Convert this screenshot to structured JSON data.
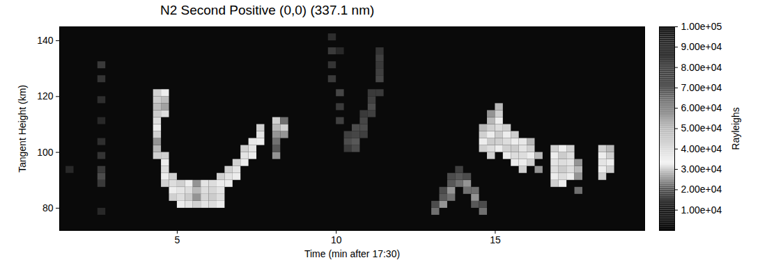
{
  "chart_data": {
    "type": "heatmap",
    "title": "N2 Second Positive (0,0) (337.1 nm)",
    "xlabel": "Time (min after 17:30)",
    "ylabel": "Tangent Height (km)",
    "colorbar_label": "Rayleighs",
    "xlim": [
      1.3,
      19.7
    ],
    "xticks": [
      5,
      10,
      15
    ],
    "ylim": [
      72,
      145
    ],
    "yticks": [
      80,
      100,
      120,
      140
    ],
    "zlim": [
      0,
      100000
    ],
    "zticks": [
      {
        "value": 10000,
        "label": "1.00e+04"
      },
      {
        "value": 20000,
        "label": "2.00e+04"
      },
      {
        "value": 30000,
        "label": "3.00e+04"
      },
      {
        "value": 40000,
        "label": "4.00e+04"
      },
      {
        "value": 50000,
        "label": "5.00e+04"
      },
      {
        "value": 60000,
        "label": "6.00e+04"
      },
      {
        "value": 70000,
        "label": "7.00e+04"
      },
      {
        "value": 80000,
        "label": "8.00e+04"
      },
      {
        "value": 90000,
        "label": "9.00e+04"
      },
      {
        "value": 100000,
        "label": "1.00e+05"
      }
    ],
    "cell_dx": 0.25,
    "cell_dy": 2.5,
    "cells": [
      [
        1.5,
        92.5,
        12000
      ],
      [
        2.5,
        77.5,
        12000
      ],
      [
        2.5,
        87.5,
        15000
      ],
      [
        2.5,
        90,
        18000
      ],
      [
        2.5,
        92.5,
        15000
      ],
      [
        2.5,
        97.5,
        14000
      ],
      [
        2.5,
        102.5,
        13000
      ],
      [
        2.5,
        110,
        12000
      ],
      [
        2.5,
        117.5,
        13000
      ],
      [
        2.5,
        125,
        14000
      ],
      [
        2.5,
        130,
        15000
      ],
      [
        4.25,
        97.5,
        30000
      ],
      [
        4.25,
        100,
        28000
      ],
      [
        4.25,
        102.5,
        25000
      ],
      [
        4.25,
        105,
        30000
      ],
      [
        4.25,
        107.5,
        35000
      ],
      [
        4.25,
        110,
        40000
      ],
      [
        4.25,
        112.5,
        45000
      ],
      [
        4.25,
        115,
        50000
      ],
      [
        4.25,
        117.5,
        45000
      ],
      [
        4.25,
        120,
        30000
      ],
      [
        4.5,
        95,
        35000
      ],
      [
        4.5,
        97.5,
        30000
      ],
      [
        4.5,
        112.5,
        40000
      ],
      [
        4.5,
        115,
        55000
      ],
      [
        4.5,
        117.5,
        50000
      ],
      [
        4.5,
        120,
        35000
      ],
      [
        4.5,
        87.5,
        30000
      ],
      [
        4.5,
        90,
        35000
      ],
      [
        4.5,
        92.5,
        40000
      ],
      [
        4.75,
        82.5,
        30000
      ],
      [
        4.75,
        85,
        35000
      ],
      [
        4.75,
        87.5,
        40000
      ],
      [
        4.75,
        90,
        30000
      ],
      [
        5.0,
        80,
        35000
      ],
      [
        5.0,
        82.5,
        40000
      ],
      [
        5.0,
        85,
        38000
      ],
      [
        5.0,
        87.5,
        30000
      ],
      [
        5.25,
        80,
        38000
      ],
      [
        5.25,
        82.5,
        45000
      ],
      [
        5.25,
        85,
        40000
      ],
      [
        5.25,
        87.5,
        35000
      ],
      [
        5.5,
        80,
        30000
      ],
      [
        5.5,
        82.5,
        25000
      ],
      [
        5.5,
        85,
        28000
      ],
      [
        5.5,
        87.5,
        25000
      ],
      [
        5.75,
        80,
        38000
      ],
      [
        5.75,
        82.5,
        42000
      ],
      [
        5.75,
        85,
        40000
      ],
      [
        5.75,
        87.5,
        38000
      ],
      [
        6.0,
        80,
        40000
      ],
      [
        6.0,
        82.5,
        45000
      ],
      [
        6.0,
        85,
        42000
      ],
      [
        6.0,
        87.5,
        40000
      ],
      [
        6.25,
        80,
        35000
      ],
      [
        6.25,
        82.5,
        40000
      ],
      [
        6.25,
        85,
        38000
      ],
      [
        6.25,
        87.5,
        35000
      ],
      [
        6.25,
        90,
        30000
      ],
      [
        6.5,
        87.5,
        35000
      ],
      [
        6.5,
        90,
        38000
      ],
      [
        6.5,
        92.5,
        30000
      ],
      [
        6.75,
        90,
        35000
      ],
      [
        6.75,
        92.5,
        38000
      ],
      [
        6.75,
        95,
        30000
      ],
      [
        7.0,
        95,
        35000
      ],
      [
        7.0,
        97.5,
        38000
      ],
      [
        7.0,
        100,
        30000
      ],
      [
        7.25,
        97.5,
        35000
      ],
      [
        7.25,
        100,
        38000
      ],
      [
        7.25,
        102.5,
        32000
      ],
      [
        7.5,
        102.5,
        35000
      ],
      [
        7.5,
        105,
        38000
      ],
      [
        7.5,
        107.5,
        30000
      ],
      [
        8.0,
        97.5,
        25000
      ],
      [
        8.0,
        100,
        20000
      ],
      [
        8.0,
        102.5,
        22000
      ],
      [
        8.0,
        105,
        25000
      ],
      [
        8.0,
        107.5,
        28000
      ],
      [
        8.0,
        110,
        30000
      ],
      [
        8.25,
        105,
        25000
      ],
      [
        8.25,
        107.5,
        30000
      ],
      [
        8.25,
        110,
        22000
      ],
      [
        9.75,
        125,
        15000
      ],
      [
        9.75,
        130,
        14000
      ],
      [
        9.75,
        135,
        15000
      ],
      [
        9.75,
        140,
        13000
      ],
      [
        10.0,
        110,
        16000
      ],
      [
        10.0,
        115,
        15000
      ],
      [
        10.0,
        120,
        17000
      ],
      [
        10.0,
        135,
        12000
      ],
      [
        10.25,
        100,
        15000
      ],
      [
        10.25,
        102.5,
        18000
      ],
      [
        10.25,
        105,
        16000
      ],
      [
        10.5,
        100,
        18000
      ],
      [
        10.5,
        102.5,
        20000
      ],
      [
        10.5,
        105,
        17000
      ],
      [
        10.5,
        107.5,
        18000
      ],
      [
        10.75,
        105,
        16000
      ],
      [
        10.75,
        107.5,
        18000
      ],
      [
        10.75,
        110,
        17000
      ],
      [
        10.75,
        112.5,
        15000
      ],
      [
        11.0,
        112.5,
        16000
      ],
      [
        11.0,
        115,
        18000
      ],
      [
        11.0,
        117.5,
        16000
      ],
      [
        11.0,
        120,
        15000
      ],
      [
        11.25,
        120,
        15000
      ],
      [
        11.25,
        125,
        17000
      ],
      [
        11.25,
        127.5,
        16000
      ],
      [
        11.25,
        130,
        15000
      ],
      [
        11.25,
        132.5,
        16000
      ],
      [
        11.25,
        135,
        14000
      ],
      [
        13.0,
        77.5,
        22000
      ],
      [
        13.0,
        80,
        18000
      ],
      [
        13.25,
        80,
        25000
      ],
      [
        13.25,
        82.5,
        20000
      ],
      [
        13.25,
        85,
        18000
      ],
      [
        13.5,
        82.5,
        22000
      ],
      [
        13.5,
        85,
        25000
      ],
      [
        13.5,
        87.5,
        20000
      ],
      [
        13.5,
        90,
        18000
      ],
      [
        13.75,
        87.5,
        22000
      ],
      [
        13.75,
        90,
        20000
      ],
      [
        13.75,
        92.5,
        16000
      ],
      [
        14.0,
        85,
        22000
      ],
      [
        14.0,
        87.5,
        25000
      ],
      [
        14.0,
        90,
        18000
      ],
      [
        14.25,
        80,
        20000
      ],
      [
        14.25,
        82.5,
        25000
      ],
      [
        14.25,
        85,
        22000
      ],
      [
        14.5,
        77.5,
        22000
      ],
      [
        14.5,
        80,
        18000
      ],
      [
        14.5,
        100,
        30000
      ],
      [
        14.5,
        102.5,
        35000
      ],
      [
        14.5,
        105,
        30000
      ],
      [
        14.5,
        107.5,
        28000
      ],
      [
        14.75,
        97.5,
        30000
      ],
      [
        14.75,
        100,
        40000
      ],
      [
        14.75,
        102.5,
        45000
      ],
      [
        14.75,
        105,
        35000
      ],
      [
        14.75,
        107.5,
        30000
      ],
      [
        14.75,
        110,
        28000
      ],
      [
        14.75,
        112.5,
        25000
      ],
      [
        15.0,
        100,
        35000
      ],
      [
        15.0,
        102.5,
        30000
      ],
      [
        15.0,
        105,
        45000
      ],
      [
        15.0,
        107.5,
        40000
      ],
      [
        15.0,
        110,
        35000
      ],
      [
        15.0,
        112.5,
        30000
      ],
      [
        15.0,
        115,
        28000
      ],
      [
        15.25,
        97.5,
        35000
      ],
      [
        15.25,
        100,
        30000
      ],
      [
        15.25,
        102.5,
        40000
      ],
      [
        15.25,
        105,
        35000
      ],
      [
        15.25,
        107.5,
        30000
      ],
      [
        15.5,
        95,
        35000
      ],
      [
        15.5,
        97.5,
        40000
      ],
      [
        15.5,
        100,
        45000
      ],
      [
        15.5,
        102.5,
        35000
      ],
      [
        15.5,
        105,
        30000
      ],
      [
        15.75,
        92.5,
        30000
      ],
      [
        15.75,
        95,
        35000
      ],
      [
        15.75,
        97.5,
        40000
      ],
      [
        15.75,
        100,
        38000
      ],
      [
        15.75,
        102.5,
        32000
      ],
      [
        16.0,
        95,
        30000
      ],
      [
        16.0,
        97.5,
        35000
      ],
      [
        16.0,
        100,
        30000
      ],
      [
        16.0,
        102.5,
        28000
      ],
      [
        16.25,
        92.5,
        25000
      ],
      [
        16.25,
        97.5,
        28000
      ],
      [
        16.75,
        87.5,
        30000
      ],
      [
        16.75,
        90,
        35000
      ],
      [
        16.75,
        92.5,
        40000
      ],
      [
        16.75,
        95,
        38000
      ],
      [
        16.75,
        97.5,
        35000
      ],
      [
        16.75,
        100,
        30000
      ],
      [
        17.0,
        87.5,
        35000
      ],
      [
        17.0,
        90,
        40000
      ],
      [
        17.0,
        92.5,
        45000
      ],
      [
        17.0,
        95,
        40000
      ],
      [
        17.0,
        97.5,
        45000
      ],
      [
        17.0,
        100,
        35000
      ],
      [
        17.25,
        90,
        35000
      ],
      [
        17.25,
        92.5,
        40000
      ],
      [
        17.25,
        95,
        38000
      ],
      [
        17.25,
        97.5,
        40000
      ],
      [
        17.25,
        100,
        30000
      ],
      [
        17.5,
        85,
        22000
      ],
      [
        17.5,
        90,
        25000
      ],
      [
        17.5,
        92.5,
        28000
      ],
      [
        17.5,
        95,
        25000
      ],
      [
        18.25,
        90,
        30000
      ],
      [
        18.25,
        92.5,
        35000
      ],
      [
        18.25,
        95,
        38000
      ],
      [
        18.25,
        97.5,
        35000
      ],
      [
        18.25,
        100,
        30000
      ],
      [
        18.5,
        92.5,
        30000
      ],
      [
        18.5,
        95,
        35000
      ],
      [
        18.5,
        97.5,
        30000
      ],
      [
        18.5,
        100,
        28000
      ]
    ]
  }
}
